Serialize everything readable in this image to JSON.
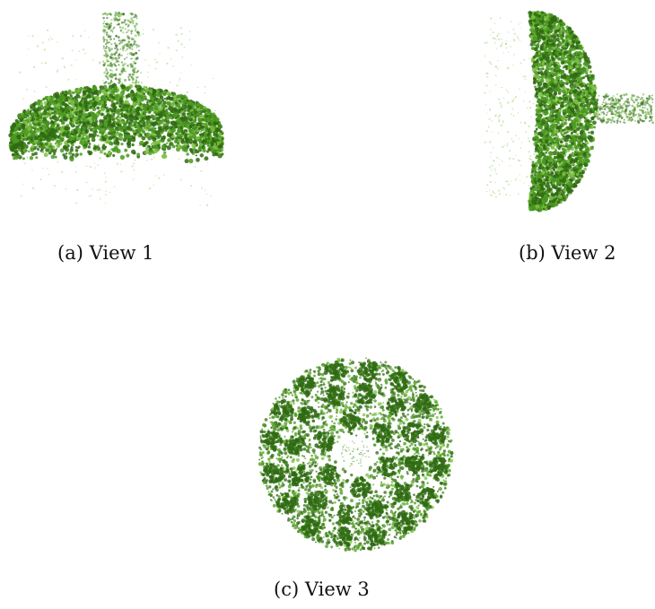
{
  "figure": {
    "panels": [
      {
        "id": "a",
        "caption": "(a) View 1",
        "view": "side"
      },
      {
        "id": "b",
        "caption": "(b) View 2",
        "view": "side-rotated"
      },
      {
        "id": "c",
        "caption": "(c) View 3",
        "view": "top-down"
      }
    ],
    "colors": {
      "dark_green": "#2f6b12",
      "mid_green": "#4a9a1f",
      "light_green": "#7cc043",
      "background": "#ffffff"
    }
  }
}
